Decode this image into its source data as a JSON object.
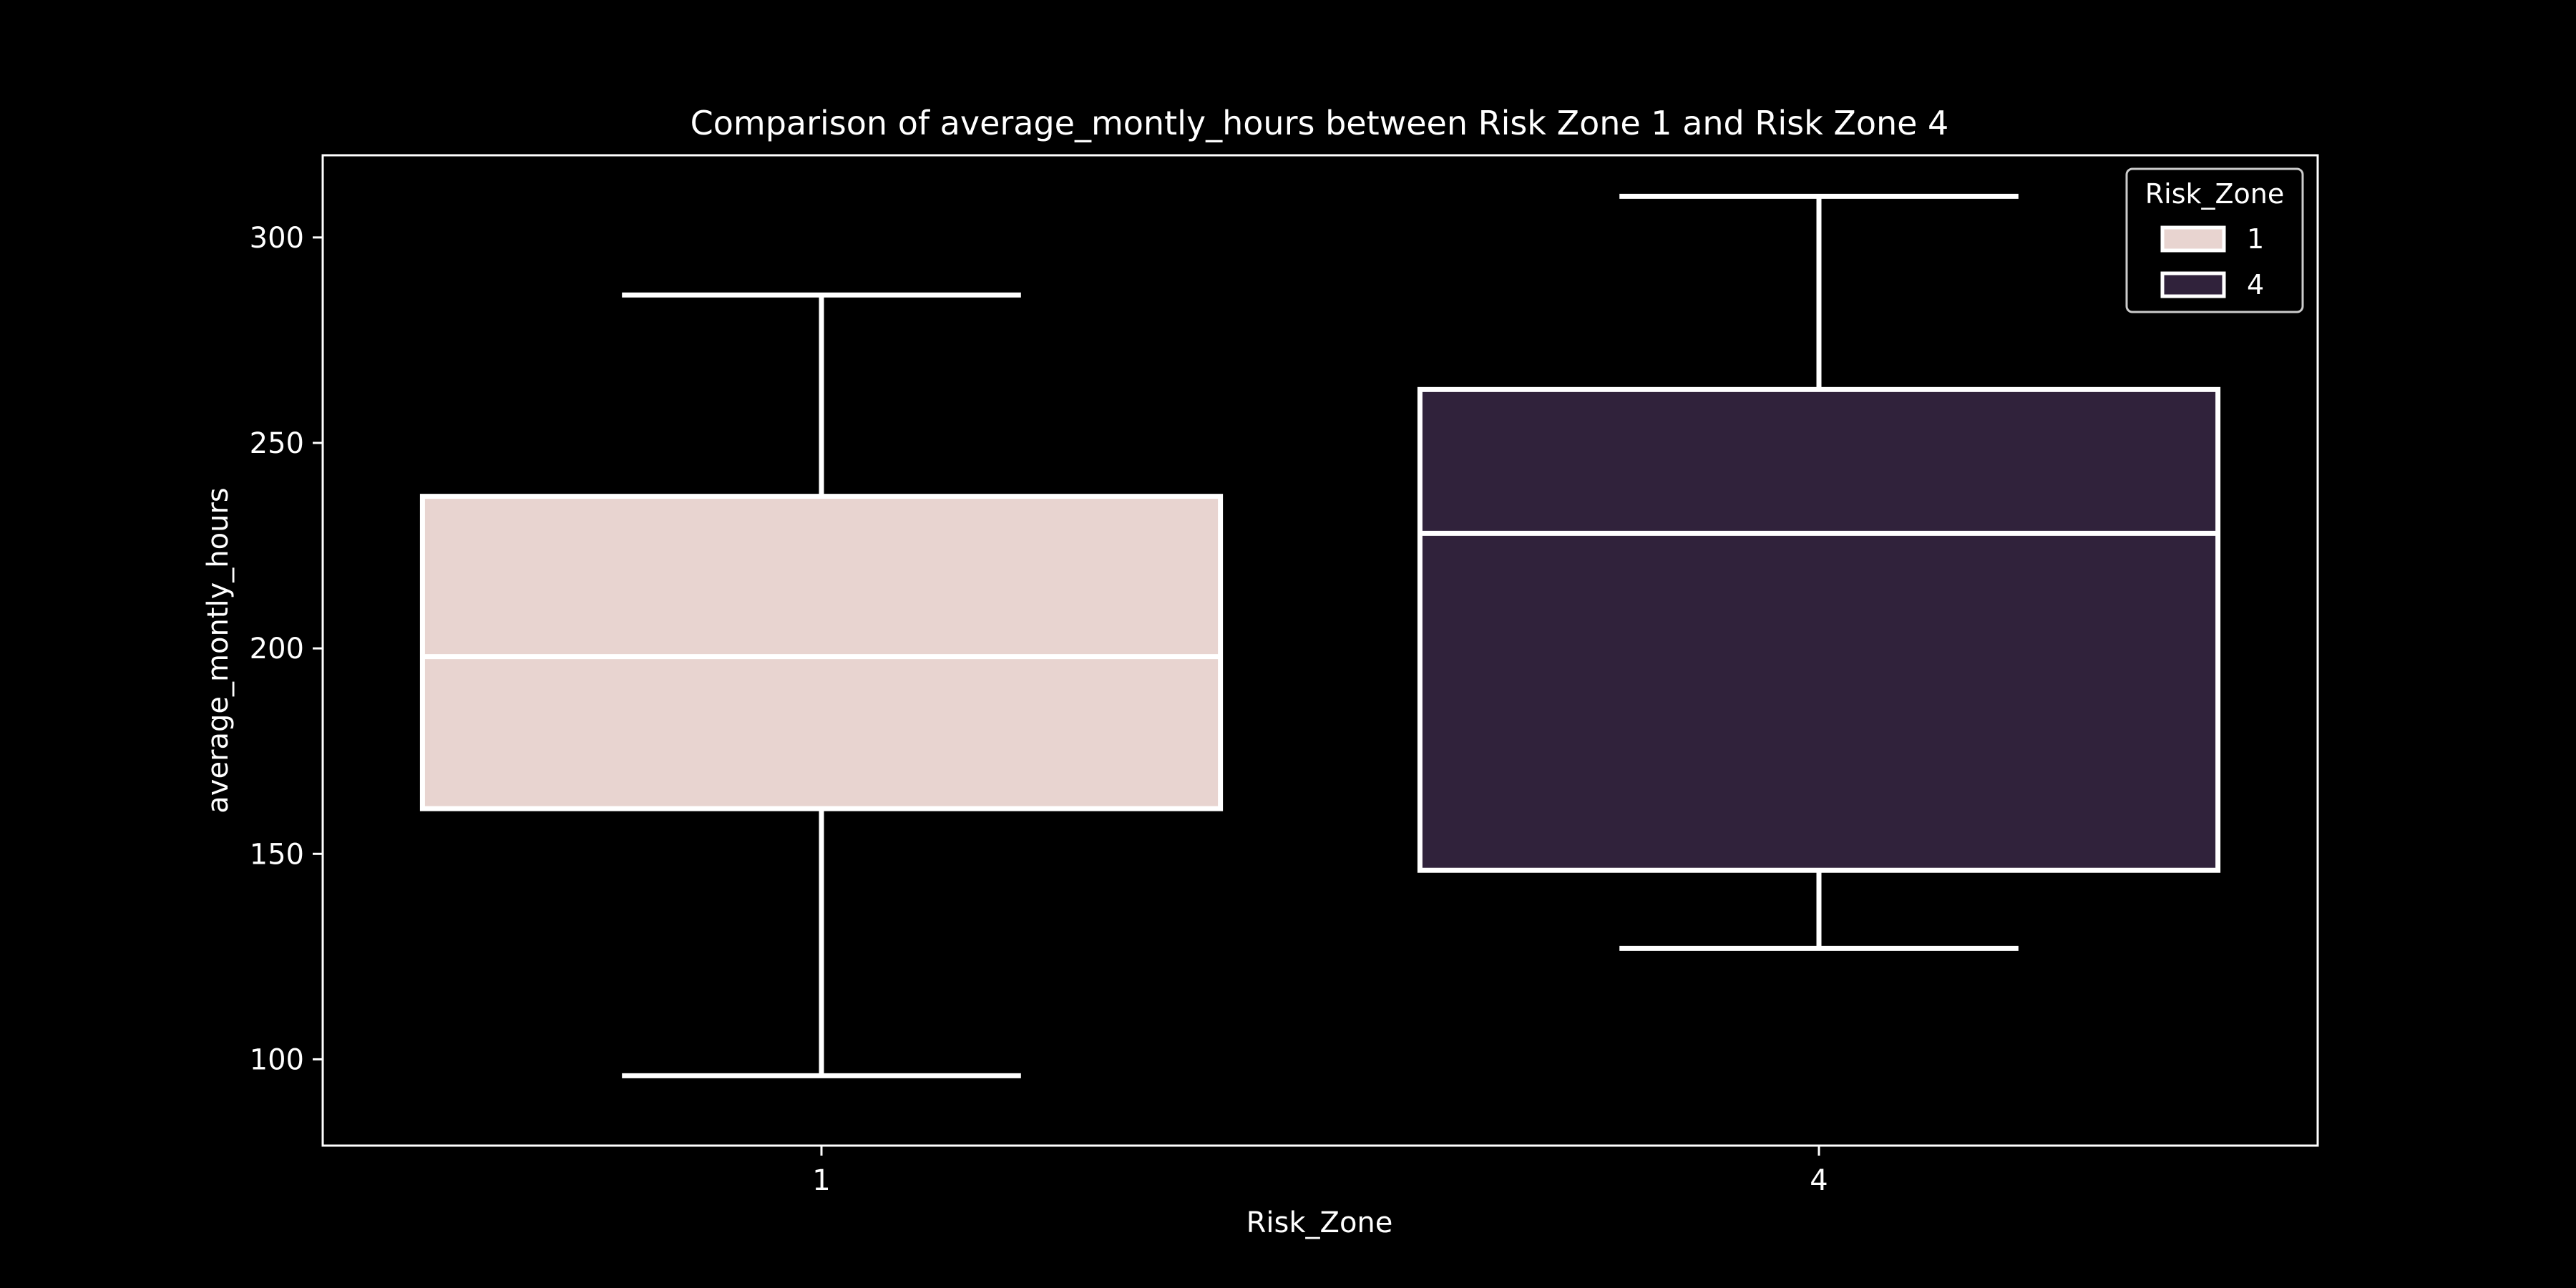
{
  "chart_data": {
    "type": "box",
    "title": "Comparison of average_montly_hours between Risk Zone 1 and Risk Zone 4",
    "xlabel": "Risk_Zone",
    "ylabel": "average_montly_hours",
    "ylim": [
      79,
      320
    ],
    "yticks": [
      100,
      150,
      200,
      250,
      300
    ],
    "categories": [
      "1",
      "4"
    ],
    "boxes": [
      {
        "category": "1",
        "whisker_low": 96,
        "q1": 161,
        "median": 198,
        "q3": 237,
        "whisker_high": 286,
        "color": "#e8d4d0"
      },
      {
        "category": "4",
        "whisker_low": 127,
        "q1": 146,
        "median": 228,
        "q3": 263,
        "whisker_high": 310,
        "color": "#30223b"
      }
    ],
    "legend": {
      "title": "Risk_Zone",
      "placement": "top-right",
      "items": [
        {
          "label": "1",
          "color": "#e8d4d0"
        },
        {
          "label": "4",
          "color": "#30223b"
        }
      ]
    },
    "grid": false,
    "colors": {
      "background": "#000000",
      "foreground": "#ffffff"
    }
  }
}
